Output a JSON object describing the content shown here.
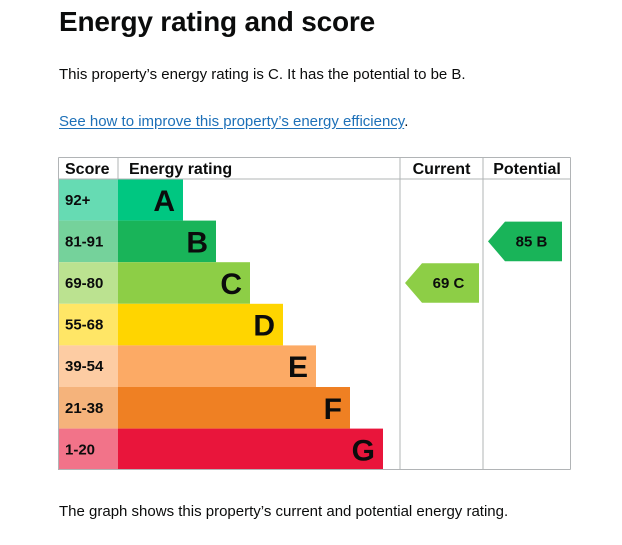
{
  "page": {
    "title": "Energy rating and score",
    "summary": "This property’s energy rating is C. It has the potential to be B.",
    "link_text": "See how to improve this property’s energy efficiency",
    "link_suffix": ".",
    "footer": "The graph shows this property’s current and potential energy rating."
  },
  "chart_data": {
    "type": "table",
    "headers": {
      "score": "Score",
      "rating": "Energy rating",
      "current": "Current",
      "potential": "Potential"
    },
    "bands": [
      {
        "score": "92+",
        "letter": "A",
        "color": "#00c781",
        "light": "#66dbb3"
      },
      {
        "score": "81-91",
        "letter": "B",
        "color": "#19b459",
        "light": "#75d29b"
      },
      {
        "score": "69-80",
        "letter": "C",
        "color": "#8dce46",
        "light": "#bbe290"
      },
      {
        "score": "55-68",
        "letter": "D",
        "color": "#ffd500",
        "light": "#ffe666"
      },
      {
        "score": "39-54",
        "letter": "E",
        "color": "#fcaa65",
        "light": "#fdcca3"
      },
      {
        "score": "21-38",
        "letter": "F",
        "color": "#ef8023",
        "light": "#f5b37b"
      },
      {
        "score": "1-20",
        "letter": "G",
        "color": "#e9153b",
        "light": "#f27389"
      }
    ],
    "current": {
      "value": 69,
      "letter": "C",
      "label": "69 C",
      "color": "#8dce46"
    },
    "potential": {
      "value": 85,
      "letter": "B",
      "label": "85 B",
      "color": "#19b459"
    }
  }
}
